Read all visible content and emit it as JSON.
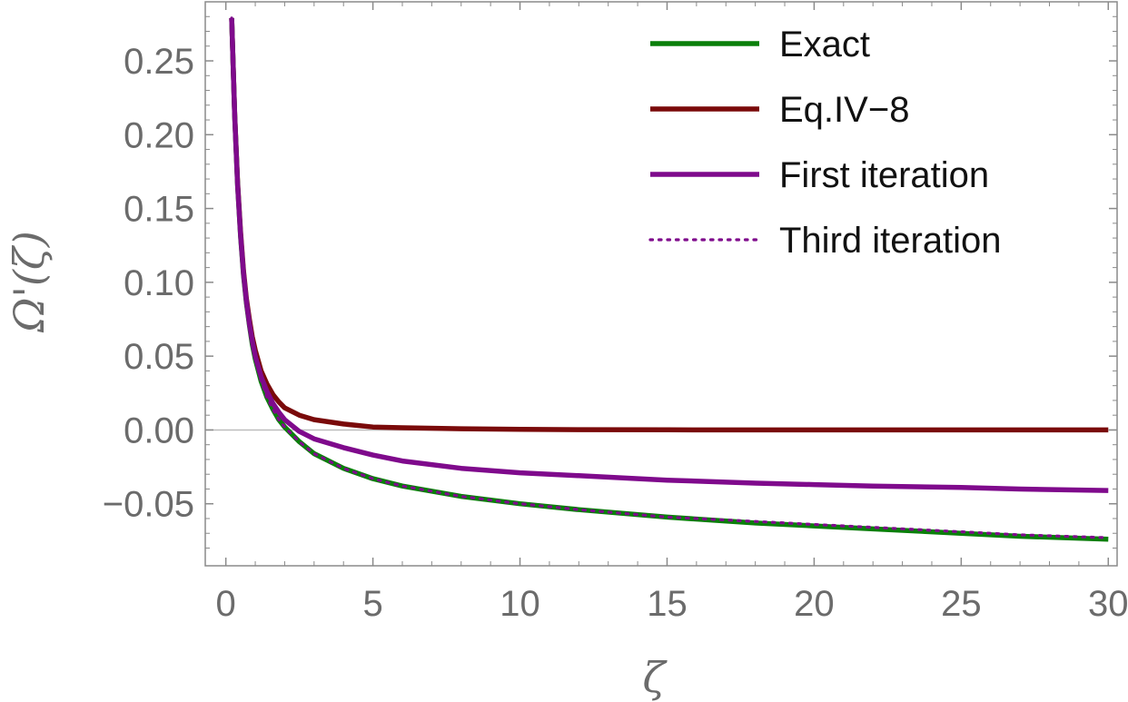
{
  "chart_data": {
    "type": "line",
    "title": "",
    "xlabel": "ζ",
    "ylabel": "Ω'(ζ)",
    "xlim": [
      -0.7,
      30.3
    ],
    "ylim": [
      -0.092,
      0.29
    ],
    "x_ticks": [
      0,
      5,
      10,
      15,
      20,
      25,
      30
    ],
    "x_tick_labels": [
      "0",
      "5",
      "10",
      "15",
      "20",
      "25",
      "30"
    ],
    "y_ticks": [
      -0.05,
      0.0,
      0.05,
      0.1,
      0.15,
      0.2,
      0.25
    ],
    "y_tick_labels": [
      "−0.05",
      "0.00",
      "0.05",
      "0.10",
      "0.15",
      "0.20",
      "0.25"
    ],
    "grid": false,
    "legend_position": "top-right",
    "series": [
      {
        "name": "Exact",
        "color": "#0a7f0a",
        "style": "solid",
        "x": [
          0.2,
          0.3,
          0.4,
          0.5,
          0.6,
          0.7,
          0.8,
          0.9,
          1.0,
          1.2,
          1.4,
          1.6,
          1.8,
          2.0,
          2.5,
          3,
          4,
          5,
          6,
          8,
          10,
          12,
          15,
          18,
          20,
          22,
          25,
          27,
          30
        ],
        "y": [
          0.279,
          0.213,
          0.166,
          0.131,
          0.105,
          0.086,
          0.071,
          0.058,
          0.048,
          0.033,
          0.022,
          0.014,
          0.007,
          0.002,
          -0.008,
          -0.016,
          -0.026,
          -0.033,
          -0.038,
          -0.045,
          -0.05,
          -0.054,
          -0.059,
          -0.063,
          -0.065,
          -0.067,
          -0.07,
          -0.072,
          -0.074
        ]
      },
      {
        "name": "Eq.IV−8",
        "color": "#7a0a0a",
        "style": "solid",
        "x": [
          0.2,
          0.3,
          0.4,
          0.5,
          0.6,
          0.7,
          0.8,
          0.9,
          1.0,
          1.2,
          1.4,
          1.6,
          1.8,
          2.0,
          2.5,
          3,
          4,
          5,
          6,
          8,
          10,
          12,
          15,
          18,
          20,
          22,
          25,
          27,
          30
        ],
        "y": [
          0.279,
          0.214,
          0.168,
          0.134,
          0.108,
          0.089,
          0.075,
          0.063,
          0.054,
          0.04,
          0.031,
          0.024,
          0.019,
          0.015,
          0.01,
          0.007,
          0.004,
          0.002,
          0.0015,
          0.0008,
          0.0004,
          0.0002,
          0.0001,
          0.0,
          0.0,
          0.0,
          0.0,
          0.0,
          0.0
        ]
      },
      {
        "name": "First iteration",
        "color": "#7f0a8c",
        "style": "solid",
        "x": [
          0.2,
          0.3,
          0.4,
          0.5,
          0.6,
          0.7,
          0.8,
          0.9,
          1.0,
          1.2,
          1.4,
          1.6,
          1.8,
          2.0,
          2.5,
          3,
          4,
          5,
          6,
          8,
          10,
          12,
          15,
          18,
          20,
          22,
          25,
          27,
          30
        ],
        "y": [
          0.279,
          0.213,
          0.166,
          0.132,
          0.106,
          0.087,
          0.072,
          0.06,
          0.05,
          0.036,
          0.026,
          0.018,
          0.012,
          0.007,
          -0.001,
          -0.006,
          -0.012,
          -0.017,
          -0.021,
          -0.026,
          -0.029,
          -0.031,
          -0.034,
          -0.036,
          -0.037,
          -0.038,
          -0.039,
          -0.04,
          -0.041
        ]
      },
      {
        "name": "Third iteration",
        "color": "#7f0a8c",
        "style": "dotted",
        "x": [
          0.2,
          0.3,
          0.4,
          0.5,
          0.6,
          0.7,
          0.8,
          0.9,
          1.0,
          1.2,
          1.4,
          1.6,
          1.8,
          2.0,
          2.5,
          3,
          4,
          5,
          6,
          8,
          10,
          12,
          15,
          18,
          20,
          22,
          25,
          27,
          30
        ],
        "y": [
          0.279,
          0.213,
          0.166,
          0.131,
          0.105,
          0.086,
          0.071,
          0.058,
          0.048,
          0.033,
          0.022,
          0.014,
          0.007,
          0.002,
          -0.008,
          -0.016,
          -0.026,
          -0.033,
          -0.038,
          -0.045,
          -0.05,
          -0.054,
          -0.059,
          -0.062,
          -0.064,
          -0.066,
          -0.069,
          -0.071,
          -0.073
        ]
      }
    ]
  }
}
